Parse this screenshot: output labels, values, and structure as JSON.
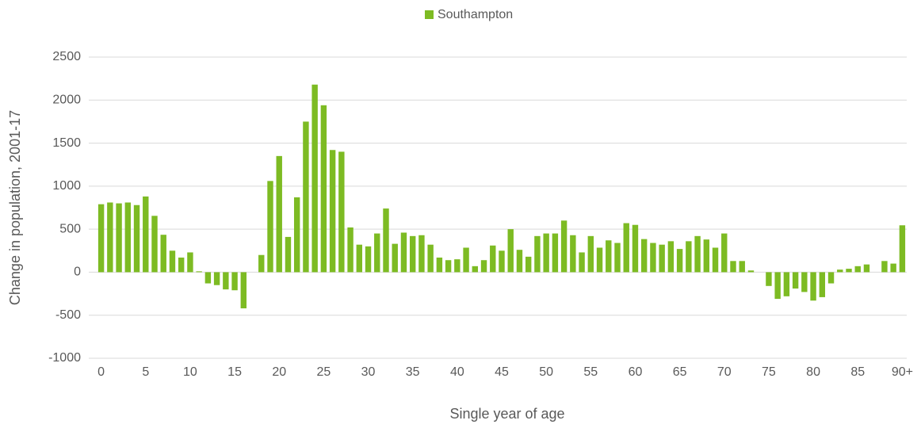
{
  "chart_data": {
    "type": "bar",
    "x_label": "Single year of age",
    "y_label": "Change in population, 2001-17",
    "categories": [
      "0",
      null,
      null,
      null,
      null,
      "5",
      null,
      null,
      null,
      null,
      "10",
      null,
      null,
      null,
      null,
      "15",
      null,
      null,
      null,
      null,
      "20",
      null,
      null,
      null,
      null,
      "25",
      null,
      null,
      null,
      null,
      "30",
      null,
      null,
      null,
      null,
      "35",
      null,
      null,
      null,
      null,
      "40",
      null,
      null,
      null,
      null,
      "45",
      null,
      null,
      null,
      null,
      "50",
      null,
      null,
      null,
      null,
      "55",
      null,
      null,
      null,
      null,
      "60",
      null,
      null,
      null,
      null,
      "65",
      null,
      null,
      null,
      null,
      "70",
      null,
      null,
      null,
      null,
      "75",
      null,
      null,
      null,
      null,
      "80",
      null,
      null,
      null,
      null,
      "85",
      null,
      null,
      null,
      null,
      "90+"
    ],
    "series": [
      {
        "name": "Southampton",
        "color": "#7dbb23",
        "values": [
          790,
          810,
          800,
          810,
          780,
          880,
          655,
          435,
          250,
          170,
          230,
          10,
          -130,
          -150,
          -200,
          -210,
          -420,
          0,
          200,
          1060,
          1350,
          410,
          870,
          1750,
          2180,
          1940,
          1420,
          1400,
          520,
          320,
          300,
          450,
          740,
          330,
          460,
          420,
          430,
          320,
          170,
          140,
          150,
          285,
          70,
          140,
          310,
          250,
          500,
          260,
          180,
          420,
          450,
          450,
          600,
          430,
          230,
          420,
          285,
          370,
          340,
          570,
          550,
          385,
          340,
          320,
          360,
          270,
          360,
          420,
          380,
          285,
          450,
          130,
          130,
          20,
          0,
          -160,
          -310,
          -280,
          -190,
          -230,
          -330,
          -290,
          -130,
          30,
          40,
          70,
          90,
          0,
          130,
          100,
          545
        ]
      }
    ],
    "ylim": [
      -1000,
      2500
    ],
    "yticks": [
      -1000,
      -500,
      0,
      500,
      1000,
      1500,
      2000,
      2500
    ],
    "grid": true,
    "legend": "top"
  }
}
